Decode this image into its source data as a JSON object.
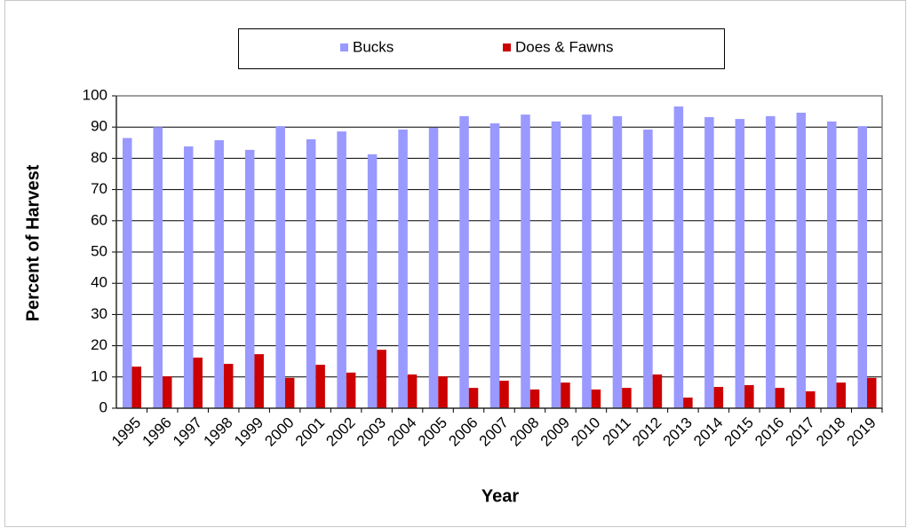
{
  "chart_data": {
    "type": "bar",
    "y_label": "Percent of Harvest",
    "x_label": "Year",
    "categories": [
      "1995",
      "1996",
      "1997",
      "1998",
      "1999",
      "2000",
      "2001",
      "2002",
      "2003",
      "2004",
      "2005",
      "2006",
      "2007",
      "2008",
      "2009",
      "2010",
      "2011",
      "2012",
      "2013",
      "2014",
      "2015",
      "2016",
      "2017",
      "2018",
      "2019"
    ],
    "series": [
      {
        "name": "Bucks",
        "color": "#9999ff",
        "values": [
          86.5,
          90,
          83.8,
          85.8,
          82.7,
          90.3,
          86.1,
          88.6,
          81.3,
          89.2,
          89.8,
          93.5,
          91.2,
          94,
          91.8,
          94,
          93.5,
          89.2,
          96.6,
          93.2,
          92.6,
          93.5,
          94.6,
          91.8,
          90.3
        ]
      },
      {
        "name": "Does & Fawns",
        "color": "#cc0000",
        "values": [
          13.3,
          10.2,
          16.2,
          14.2,
          17.3,
          9.7,
          13.9,
          11.4,
          18.7,
          10.8,
          10.2,
          6.5,
          8.8,
          6,
          8.2,
          6,
          6.5,
          10.8,
          3.4,
          6.8,
          7.4,
          6.5,
          5.4,
          8.2,
          9.7
        ]
      }
    ],
    "ylim": [
      0,
      100
    ],
    "yticks": [
      0,
      10,
      20,
      30,
      40,
      50,
      60,
      70,
      80,
      90,
      100
    ],
    "grid": true,
    "legend": "top"
  }
}
